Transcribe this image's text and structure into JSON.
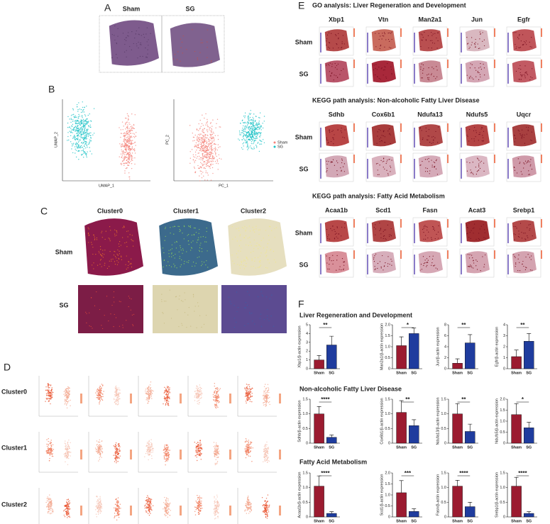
{
  "panel_labels": [
    "A",
    "B",
    "C",
    "D",
    "E",
    "F"
  ],
  "panel_a": {
    "groups": [
      "Sham",
      "SG"
    ]
  },
  "panel_b": {
    "umap_x": "UMAP_1",
    "umap_y": "UMAP_2",
    "pc_x": "PC_1",
    "pc_y": "PC_2",
    "legend": [
      "Sham",
      "SG"
    ]
  },
  "panel_c": {
    "clusters": [
      "Cluster0",
      "Cluster1",
      "Cluster2"
    ],
    "groups": [
      "Sham",
      "SG"
    ]
  },
  "panel_d": {
    "rows": [
      "Cluster0",
      "Cluster1",
      "Cluster2"
    ]
  },
  "panel_e": {
    "sections": [
      {
        "title": "GO analysis: Liver Regeneration and Development",
        "genes": [
          "Xbp1",
          "Vtn",
          "Man2a1",
          "Jun",
          "Egfr"
        ]
      },
      {
        "title": "KEGG path analysis: Non-alcoholic Fatty Liver Disease",
        "genes": [
          "Sdhb",
          "Cox6b1",
          "Ndufa13",
          "Ndufs5",
          "Uqcr"
        ]
      },
      {
        "title": "KEGG path analysis: Fatty Acid Metabolism",
        "genes": [
          "Acaa1b",
          "Scd1",
          "Fasn",
          "Acat3",
          "Srebp1"
        ]
      }
    ],
    "groups": [
      "Sham",
      "SG"
    ]
  },
  "panel_f": {
    "sections": [
      "Liver Regeneration and Development",
      "Non-alcoholic Fatty Liver Disease",
      "Fatty Acid Metabolism"
    ]
  },
  "chart_data": [
    {
      "type": "bar",
      "ylabel": "Xbp1/β-actin expression",
      "categories": [
        "Sham",
        "SG"
      ],
      "values": [
        1.0,
        2.7
      ],
      "errors": [
        0.5,
        1.0
      ],
      "colors": [
        "#9b1b30",
        "#1f3c9e"
      ],
      "ylim": [
        0,
        5
      ],
      "yticks": [
        0,
        1,
        2,
        3,
        4,
        5
      ],
      "significance": "**"
    },
    {
      "type": "bar",
      "ylabel": "Man2a1/β-actin expression",
      "categories": [
        "Sham",
        "SG"
      ],
      "values": [
        1.05,
        1.6
      ],
      "errors": [
        0.4,
        0.25
      ],
      "colors": [
        "#9b1b30",
        "#1f3c9e"
      ],
      "ylim": [
        0,
        2
      ],
      "yticks": [
        0,
        0.5,
        {
          "value": 1,
          "label": "1.0"
        },
        1.5,
        {
          "value": 2,
          "label": "2.0"
        }
      ],
      "significance": "*"
    },
    {
      "type": "bar",
      "ylabel": "Jun/β-actin expression",
      "categories": [
        "Sham",
        "SG"
      ],
      "values": [
        1.0,
        4.7
      ],
      "errors": [
        0.8,
        1.5
      ],
      "colors": [
        "#9b1b30",
        "#1f3c9e"
      ],
      "ylim": [
        0,
        8
      ],
      "yticks": [
        0,
        2,
        4,
        6,
        8
      ],
      "significance": "**"
    },
    {
      "type": "bar",
      "ylabel": "Egfr/β-actin expression",
      "categories": [
        "Sham",
        "SG"
      ],
      "values": [
        1.1,
        2.5
      ],
      "errors": [
        0.6,
        0.7
      ],
      "colors": [
        "#9b1b30",
        "#1f3c9e"
      ],
      "ylim": [
        0,
        4
      ],
      "yticks": [
        0,
        1,
        2,
        3,
        4
      ],
      "significance": "**"
    },
    {
      "type": "bar",
      "ylabel": "Sdhb/β-actin expression",
      "categories": [
        "Sham",
        "SG"
      ],
      "values": [
        1.0,
        0.2
      ],
      "errors": [
        0.25,
        0.08
      ],
      "colors": [
        "#9b1b30",
        "#1f3c9e"
      ],
      "ylim": [
        0,
        1.5
      ],
      "yticks": [
        0,
        0.5,
        {
          "value": 1,
          "label": "1.0"
        },
        1.5
      ],
      "significance": "****"
    },
    {
      "type": "bar",
      "ylabel": "Cox6b1/β-actin expression",
      "categories": [
        "Sham",
        "SG"
      ],
      "values": [
        1.05,
        0.6
      ],
      "errors": [
        0.4,
        0.2
      ],
      "colors": [
        "#9b1b30",
        "#1f3c9e"
      ],
      "ylim": [
        0,
        1.5
      ],
      "yticks": [
        0,
        0.5,
        {
          "value": 1,
          "label": "1.0"
        },
        1.5
      ],
      "significance": "**"
    },
    {
      "type": "bar",
      "ylabel": "Ndufa13/β-actin expression",
      "categories": [
        "Sham",
        "SG"
      ],
      "values": [
        1.0,
        0.4
      ],
      "errors": [
        0.35,
        0.25
      ],
      "colors": [
        "#9b1b30",
        "#1f3c9e"
      ],
      "ylim": [
        0,
        1.5
      ],
      "yticks": [
        0,
        0.5,
        {
          "value": 1,
          "label": "1.0"
        },
        1.5
      ],
      "significance": "**"
    },
    {
      "type": "bar",
      "ylabel": "Ndufs5/β-actin expression",
      "categories": [
        "Sham",
        "SG"
      ],
      "values": [
        1.3,
        0.7
      ],
      "errors": [
        0.5,
        0.25
      ],
      "colors": [
        "#9b1b30",
        "#1f3c9e"
      ],
      "ylim": [
        0,
        2
      ],
      "yticks": [
        0,
        0.5,
        {
          "value": 1,
          "label": "1.0"
        },
        1.5,
        {
          "value": 2,
          "label": "2.0"
        }
      ],
      "significance": "*"
    },
    {
      "type": "bar",
      "ylabel": "Acaa1b/β-actin expression",
      "categories": [
        "Sham",
        "SG"
      ],
      "values": [
        1.05,
        0.12
      ],
      "errors": [
        0.35,
        0.06
      ],
      "colors": [
        "#9b1b30",
        "#1f3c9e"
      ],
      "ylim": [
        0,
        1.5
      ],
      "yticks": [
        0,
        0.5,
        {
          "value": 1,
          "label": "1.0"
        },
        1.5
      ],
      "significance": "****"
    },
    {
      "type": "bar",
      "ylabel": "Scd1/β-actin expression",
      "categories": [
        "Sham",
        "SG"
      ],
      "values": [
        1.1,
        0.25
      ],
      "errors": [
        0.55,
        0.12
      ],
      "colors": [
        "#9b1b30",
        "#1f3c9e"
      ],
      "ylim": [
        0,
        2
      ],
      "yticks": [
        0,
        0.5,
        {
          "value": 1,
          "label": "1.0"
        },
        1.5,
        {
          "value": 2,
          "label": "2.0"
        }
      ],
      "significance": "***"
    },
    {
      "type": "bar",
      "ylabel": "Fasn/β-actin expression",
      "categories": [
        "Sham",
        "SG"
      ],
      "values": [
        1.05,
        0.35
      ],
      "errors": [
        0.2,
        0.15
      ],
      "colors": [
        "#9b1b30",
        "#1f3c9e"
      ],
      "ylim": [
        0,
        1.5
      ],
      "yticks": [
        0,
        0.5,
        {
          "value": 1,
          "label": "1.0"
        },
        1.5
      ],
      "significance": "****"
    },
    {
      "type": "bar",
      "ylabel": "Srebp1/β-actin expression",
      "categories": [
        "Sham",
        "SG"
      ],
      "values": [
        1.05,
        0.12
      ],
      "errors": [
        0.3,
        0.06
      ],
      "colors": [
        "#9b1b30",
        "#1f3c9e"
      ],
      "ylim": [
        0,
        1.5
      ],
      "yticks": [
        0,
        0.5,
        {
          "value": 1,
          "label": "1.0"
        },
        1.5
      ],
      "significance": "****"
    }
  ]
}
